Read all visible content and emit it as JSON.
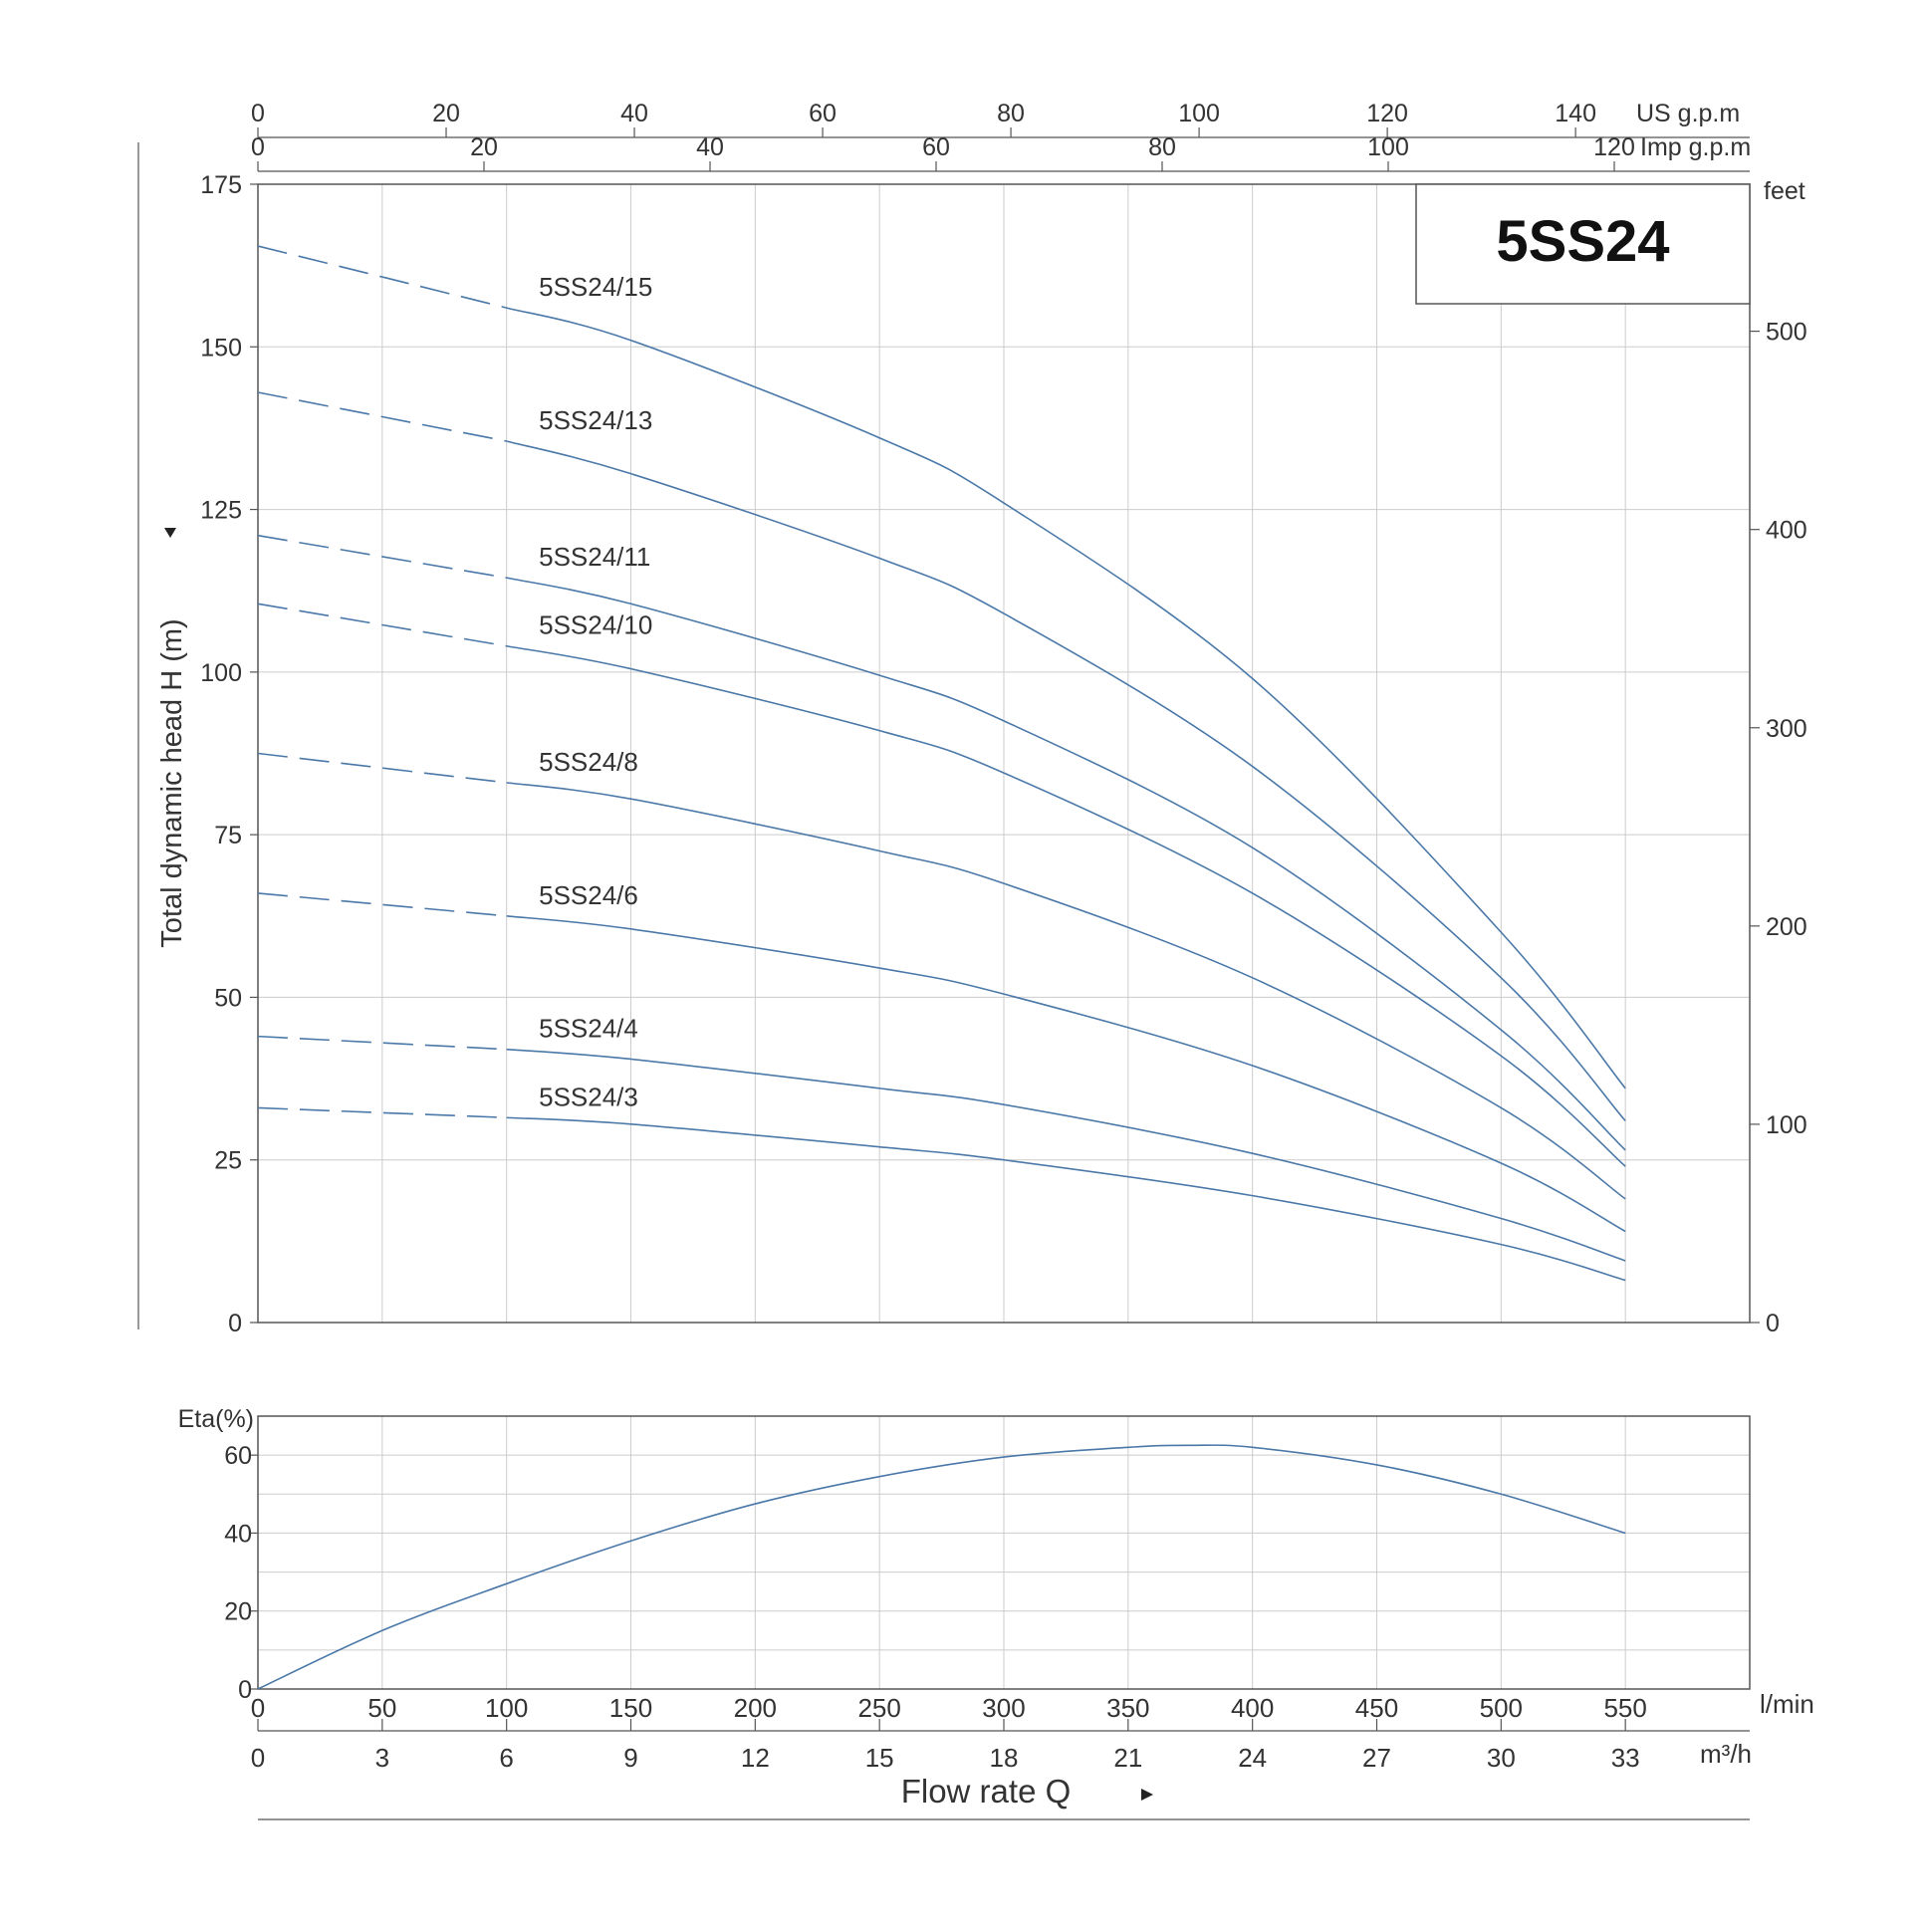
{
  "chart_data": [
    {
      "type": "line",
      "model_title": "5SS24",
      "ylabel": "Total dynamic head H (m)",
      "ylim": [
        0,
        175
      ],
      "yticks": [
        0,
        25,
        50,
        75,
        100,
        125,
        150,
        175
      ],
      "right_axis": {
        "unit": "feet",
        "ticks": [
          0,
          100,
          200,
          300,
          400,
          500
        ]
      },
      "top_axes": [
        {
          "unit": "US g.p.m",
          "ticks": [
            0,
            20,
            40,
            60,
            80,
            100,
            120,
            140
          ]
        },
        {
          "unit": "Imp g.p.m",
          "ticks": [
            0,
            20,
            40,
            60,
            80,
            100,
            120
          ]
        }
      ],
      "xlim": [
        0,
        600
      ],
      "x_unit": "l/min",
      "dashed_until_x": 100,
      "series": [
        {
          "name": "5SS24/15",
          "x": [
            0,
            100,
            150,
            250,
            300,
            400,
            500,
            550
          ],
          "y": [
            165.5,
            156,
            151,
            136,
            126,
            99,
            60,
            36
          ]
        },
        {
          "name": "5SS24/13",
          "x": [
            0,
            100,
            150,
            250,
            300,
            400,
            500,
            550
          ],
          "y": [
            143,
            135.5,
            130.5,
            117.5,
            109,
            85.5,
            53,
            31
          ]
        },
        {
          "name": "5SS24/11",
          "x": [
            0,
            100,
            150,
            250,
            300,
            400,
            500,
            550
          ],
          "y": [
            121,
            114.5,
            110.5,
            99.5,
            92.5,
            73,
            45,
            26.5
          ]
        },
        {
          "name": "5SS24/10",
          "x": [
            0,
            100,
            150,
            250,
            300,
            400,
            500,
            550
          ],
          "y": [
            110.5,
            104,
            100.5,
            91,
            84.5,
            66,
            41,
            24
          ]
        },
        {
          "name": "5SS24/8",
          "x": [
            0,
            100,
            150,
            250,
            300,
            400,
            500,
            550
          ],
          "y": [
            87.5,
            83,
            80.5,
            72.5,
            67.5,
            53,
            33,
            19
          ]
        },
        {
          "name": "5SS24/6",
          "x": [
            0,
            100,
            150,
            250,
            300,
            400,
            500,
            550
          ],
          "y": [
            66,
            62.5,
            60.5,
            54.5,
            50.5,
            39.5,
            24.5,
            14
          ]
        },
        {
          "name": "5SS24/4",
          "x": [
            0,
            100,
            150,
            250,
            300,
            400,
            500,
            550
          ],
          "y": [
            44,
            42,
            40.5,
            36,
            33.5,
            26,
            16,
            9.5
          ]
        },
        {
          "name": "5SS24/3",
          "x": [
            0,
            100,
            150,
            250,
            300,
            400,
            500,
            550
          ],
          "y": [
            33,
            31.5,
            30.5,
            27,
            25,
            19.5,
            12,
            6.5
          ]
        }
      ],
      "grid": true
    },
    {
      "type": "line",
      "ylabel": "Eta(%)",
      "ylim": [
        0,
        70
      ],
      "yticks": [
        0,
        20,
        40,
        60
      ],
      "xlim": [
        0,
        600
      ],
      "series": [
        {
          "name": "",
          "x": [
            0,
            50,
            100,
            150,
            200,
            250,
            300,
            350,
            375,
            400,
            450,
            500,
            550
          ],
          "y": [
            0,
            15,
            27,
            38,
            47.5,
            54.5,
            59.5,
            62,
            62.5,
            62,
            57.5,
            50,
            40
          ]
        }
      ],
      "grid": true
    }
  ],
  "x_axes": [
    {
      "unit": "l/min",
      "ticks": [
        0,
        50,
        100,
        150,
        200,
        250,
        300,
        350,
        400,
        450,
        500,
        550
      ]
    },
    {
      "unit": "m³/h",
      "ticks": [
        0,
        3,
        6,
        9,
        12,
        15,
        18,
        21,
        24,
        27,
        30,
        33
      ]
    }
  ],
  "xlabel": "Flow rate Q",
  "line_color": "#4a78a8"
}
